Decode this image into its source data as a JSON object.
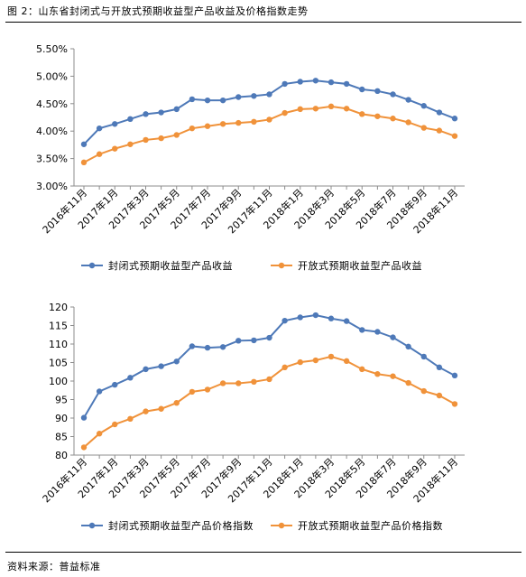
{
  "figure": {
    "title": "图 2：山东省封闭式与开放式预期收益型产品收益及价格指数走势",
    "source": "资料来源：普益标准"
  },
  "chart_data": [
    {
      "type": "line",
      "x": [
        "2016年11月",
        "2016年12月",
        "2017年1月",
        "2017年2月",
        "2017年3月",
        "2017年4月",
        "2017年5月",
        "2017年6月",
        "2017年7月",
        "2017年8月",
        "2017年9月",
        "2017年10月",
        "2017年11月",
        "2017年12月",
        "2018年1月",
        "2018年2月",
        "2018年3月",
        "2018年4月",
        "2018年5月",
        "2018年6月",
        "2018年7月",
        "2018年8月",
        "2018年9月",
        "2018年10月",
        "2018年11月"
      ],
      "x_tick_labels": [
        "2016年11月",
        "2017年1月",
        "2017年3月",
        "2017年5月",
        "2017年7月",
        "2017年9月",
        "2017年11月",
        "2018年1月",
        "2018年3月",
        "2018年5月",
        "2018年7月",
        "2018年9月",
        "2018年11月"
      ],
      "y_tick_labels": [
        "3.00%",
        "3.50%",
        "4.00%",
        "4.50%",
        "5.00%",
        "5.50%"
      ],
      "ylim": [
        3.0,
        5.5
      ],
      "yticks": [
        3.0,
        3.5,
        4.0,
        4.5,
        5.0,
        5.5
      ],
      "grid": false,
      "legend": "bottom",
      "series": [
        {
          "name": "封闭式预期收益型产品收益",
          "color": "#4e79b8",
          "values": [
            3.76,
            4.05,
            4.13,
            4.22,
            4.31,
            4.34,
            4.4,
            4.58,
            4.56,
            4.56,
            4.62,
            4.64,
            4.67,
            4.86,
            4.9,
            4.92,
            4.89,
            4.86,
            4.76,
            4.73,
            4.67,
            4.57,
            4.46,
            4.34,
            4.23
          ]
        },
        {
          "name": "开放式预期收益型产品收益",
          "color": "#f0923a",
          "values": [
            3.43,
            3.58,
            3.68,
            3.76,
            3.84,
            3.87,
            3.93,
            4.05,
            4.09,
            4.13,
            4.15,
            4.17,
            4.21,
            4.33,
            4.4,
            4.41,
            4.45,
            4.41,
            4.31,
            4.27,
            4.23,
            4.16,
            4.06,
            4.01,
            3.91
          ]
        }
      ]
    },
    {
      "type": "line",
      "x": [
        "2016年11月",
        "2016年12月",
        "2017年1月",
        "2017年2月",
        "2017年3月",
        "2017年4月",
        "2017年5月",
        "2017年6月",
        "2017年7月",
        "2017年8月",
        "2017年9月",
        "2017年10月",
        "2017年11月",
        "2017年12月",
        "2018年1月",
        "2018年2月",
        "2018年3月",
        "2018年4月",
        "2018年5月",
        "2018年6月",
        "2018年7月",
        "2018年8月",
        "2018年9月",
        "2018年10月",
        "2018年11月"
      ],
      "x_tick_labels": [
        "2016年11月",
        "2017年1月",
        "2017年3月",
        "2017年5月",
        "2017年7月",
        "2017年9月",
        "2017年11月",
        "2018年1月",
        "2018年3月",
        "2018年5月",
        "2018年7月",
        "2018年9月",
        "2018年11月"
      ],
      "y_tick_labels": [
        "80",
        "85",
        "90",
        "95",
        "100",
        "105",
        "110",
        "115",
        "120"
      ],
      "ylim": [
        80,
        120
      ],
      "yticks": [
        80,
        85,
        90,
        95,
        100,
        105,
        110,
        115,
        120
      ],
      "grid": false,
      "legend": "bottom",
      "series": [
        {
          "name": "封闭式预期收益型产品价格指数",
          "color": "#4e79b8",
          "values": [
            90.1,
            97.2,
            99.0,
            100.9,
            103.2,
            104.0,
            105.3,
            109.4,
            109.0,
            109.2,
            110.9,
            111.0,
            111.7,
            116.3,
            117.2,
            117.8,
            116.9,
            116.2,
            113.8,
            113.3,
            111.8,
            109.3,
            106.6,
            103.7,
            101.5
          ]
        },
        {
          "name": "开放式预期收益型产品价格指数",
          "color": "#f0923a",
          "values": [
            82.1,
            85.8,
            88.3,
            89.8,
            91.8,
            92.5,
            94.1,
            97.1,
            97.7,
            99.4,
            99.4,
            99.8,
            100.5,
            103.7,
            105.1,
            105.6,
            106.6,
            105.4,
            103.2,
            101.9,
            101.3,
            99.5,
            97.3,
            96.1,
            93.8
          ]
        }
      ]
    }
  ]
}
